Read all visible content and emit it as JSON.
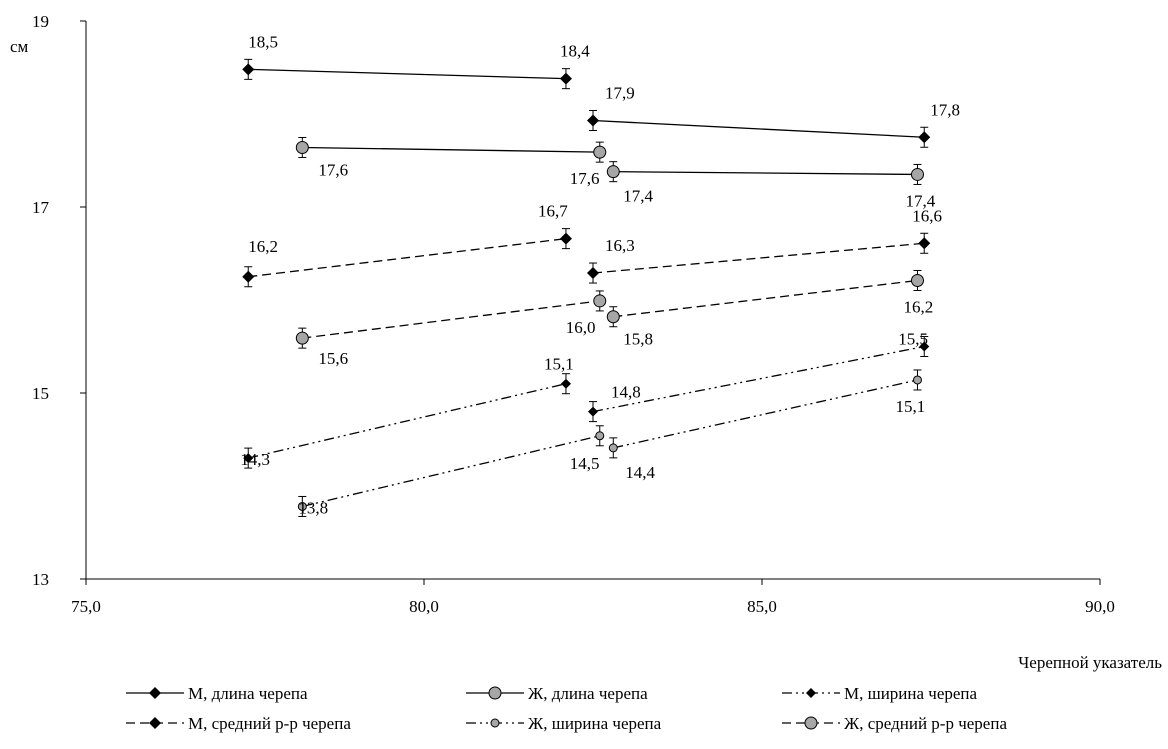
{
  "chart_data": {
    "type": "scatter",
    "ylabel": "см",
    "xlabel": "Черепной указатель",
    "xlim": [
      75.0,
      90.0
    ],
    "ylim": [
      13,
      19
    ],
    "x_ticks": [
      "75,0",
      "80,0",
      "85,0",
      "90,0"
    ],
    "y_ticks": [
      "13",
      "15",
      "17",
      "19"
    ],
    "grid": false,
    "legend_position": "bottom",
    "series": [
      {
        "name": "М, длина черепа",
        "marker": "diamond",
        "marker_color": "#000000",
        "line_style": "solid",
        "segments": [
          {
            "x": [
              77.4,
              82.1
            ],
            "y": [
              18.48,
              18.38
            ],
            "labels": [
              "18,5",
              "18,4"
            ]
          },
          {
            "x": [
              82.5,
              87.4
            ],
            "y": [
              17.93,
              17.75
            ],
            "labels": [
              "17,9",
              "17,8"
            ]
          }
        ]
      },
      {
        "name": "Ж, длина черепа",
        "marker": "circle",
        "marker_color": "#a6a6a6",
        "line_style": "solid",
        "segments": [
          {
            "x": [
              78.2,
              82.6
            ],
            "y": [
              17.64,
              17.59
            ],
            "labels": [
              "17,6",
              "17,6"
            ]
          },
          {
            "x": [
              82.8,
              87.3
            ],
            "y": [
              17.38,
              17.35
            ],
            "labels": [
              "17,4",
              "17,4"
            ]
          }
        ]
      },
      {
        "name": "М, ширина черепа",
        "marker": "diamond-small",
        "marker_color": "#000000",
        "line_style": "dash-dot-dot",
        "segments": [
          {
            "x": [
              77.4,
              82.1
            ],
            "y": [
              14.3,
              15.1
            ],
            "labels": [
              "14,3",
              "15,1"
            ]
          },
          {
            "x": [
              82.5,
              87.4
            ],
            "y": [
              14.8,
              15.5
            ],
            "labels": [
              "14,8",
              "15,5"
            ]
          }
        ]
      },
      {
        "name": "М, средний р-р черепа",
        "marker": "diamond",
        "marker_color": "#000000",
        "line_style": "dashed",
        "segments": [
          {
            "x": [
              77.4,
              82.1
            ],
            "y": [
              16.25,
              16.66
            ],
            "labels": [
              "16,2",
              "16,7"
            ]
          },
          {
            "x": [
              82.5,
              87.4
            ],
            "y": [
              16.29,
              16.61
            ],
            "labels": [
              "16,3",
              "16,6"
            ]
          }
        ]
      },
      {
        "name": "Ж, ширина черепа",
        "marker": "circle-small",
        "marker_color": "#a6a6a6",
        "line_style": "dash-dot-dot",
        "segments": [
          {
            "x": [
              78.2,
              82.6
            ],
            "y": [
              13.78,
              14.54
            ],
            "labels": [
              "13,8",
              "14,5"
            ]
          },
          {
            "x": [
              82.8,
              87.3
            ],
            "y": [
              14.41,
              15.14
            ],
            "labels": [
              "14,4",
              "15,1"
            ]
          }
        ]
      },
      {
        "name": "Ж, средний р-р черепа",
        "marker": "circle",
        "marker_color": "#a6a6a6",
        "line_style": "dashed",
        "segments": [
          {
            "x": [
              78.2,
              82.6
            ],
            "y": [
              15.59,
              15.99
            ],
            "labels": [
              "15,6",
              "16,0"
            ]
          },
          {
            "x": [
              82.8,
              87.3
            ],
            "y": [
              15.82,
              16.21
            ],
            "labels": [
              "15,8",
              "16,2"
            ]
          }
        ]
      }
    ]
  }
}
